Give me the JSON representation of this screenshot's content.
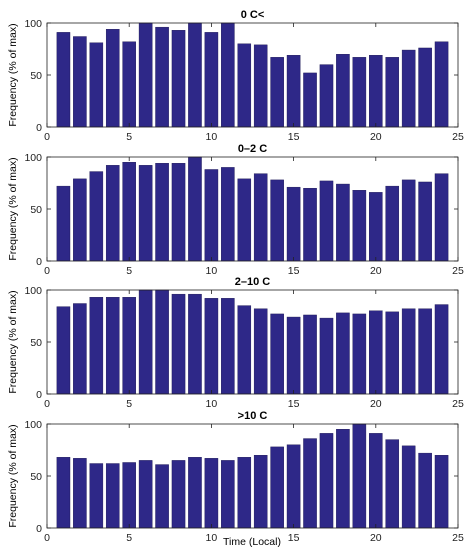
{
  "figure": {
    "xlabel": "Time (Local)",
    "ylabel": "Frequency (% of max)",
    "bar_color": "#2e2888"
  },
  "chart_data": [
    {
      "type": "bar",
      "title": "0 C<",
      "xlabel": "",
      "ylabel": "Frequency (% of max)",
      "xlim": [
        0,
        25
      ],
      "ylim": [
        0,
        100
      ],
      "xticks": [
        0,
        5,
        10,
        15,
        20,
        25
      ],
      "yticks": [
        0,
        50,
        100
      ],
      "categories": [
        1,
        2,
        3,
        4,
        5,
        6,
        7,
        8,
        9,
        10,
        11,
        12,
        13,
        14,
        15,
        16,
        17,
        18,
        19,
        20,
        21,
        22,
        23,
        24
      ],
      "values": [
        91,
        87,
        81,
        94,
        82,
        100,
        96,
        93,
        100,
        91,
        100,
        80,
        79,
        67,
        69,
        52,
        60,
        70,
        67,
        69,
        67,
        74,
        76,
        82
      ]
    },
    {
      "type": "bar",
      "title": "0–2 C",
      "xlabel": "",
      "ylabel": "Frequency (% of max)",
      "xlim": [
        0,
        25
      ],
      "ylim": [
        0,
        100
      ],
      "xticks": [
        0,
        5,
        10,
        15,
        20,
        25
      ],
      "yticks": [
        0,
        50,
        100
      ],
      "categories": [
        1,
        2,
        3,
        4,
        5,
        6,
        7,
        8,
        9,
        10,
        11,
        12,
        13,
        14,
        15,
        16,
        17,
        18,
        19,
        20,
        21,
        22,
        23,
        24
      ],
      "values": [
        72,
        79,
        86,
        92,
        95,
        92,
        94,
        94,
        100,
        88,
        90,
        79,
        84,
        78,
        71,
        70,
        77,
        74,
        68,
        66,
        72,
        78,
        76,
        84
      ]
    },
    {
      "type": "bar",
      "title": "2–10 C",
      "xlabel": "",
      "ylabel": "Frequency (% of max)",
      "xlim": [
        0,
        25
      ],
      "ylim": [
        0,
        100
      ],
      "xticks": [
        0,
        5,
        10,
        15,
        20,
        25
      ],
      "yticks": [
        0,
        50,
        100
      ],
      "categories": [
        1,
        2,
        3,
        4,
        5,
        6,
        7,
        8,
        9,
        10,
        11,
        12,
        13,
        14,
        15,
        16,
        17,
        18,
        19,
        20,
        21,
        22,
        23,
        24
      ],
      "values": [
        84,
        87,
        93,
        93,
        93,
        100,
        100,
        96,
        96,
        92,
        92,
        85,
        82,
        77,
        74,
        76,
        73,
        78,
        77,
        80,
        79,
        82,
        82,
        86
      ]
    },
    {
      "type": "bar",
      "title": ">10 C",
      "xlabel": "Time (Local)",
      "ylabel": "Frequency (% of max)",
      "xlim": [
        0,
        25
      ],
      "ylim": [
        0,
        100
      ],
      "xticks": [
        0,
        5,
        10,
        15,
        20,
        25
      ],
      "yticks": [
        0,
        50,
        100
      ],
      "categories": [
        1,
        2,
        3,
        4,
        5,
        6,
        7,
        8,
        9,
        10,
        11,
        12,
        13,
        14,
        15,
        16,
        17,
        18,
        19,
        20,
        21,
        22,
        23,
        24
      ],
      "values": [
        68,
        67,
        62,
        62,
        63,
        65,
        61,
        65,
        68,
        67,
        65,
        68,
        70,
        78,
        80,
        86,
        91,
        95,
        100,
        91,
        85,
        79,
        72,
        70
      ]
    }
  ]
}
